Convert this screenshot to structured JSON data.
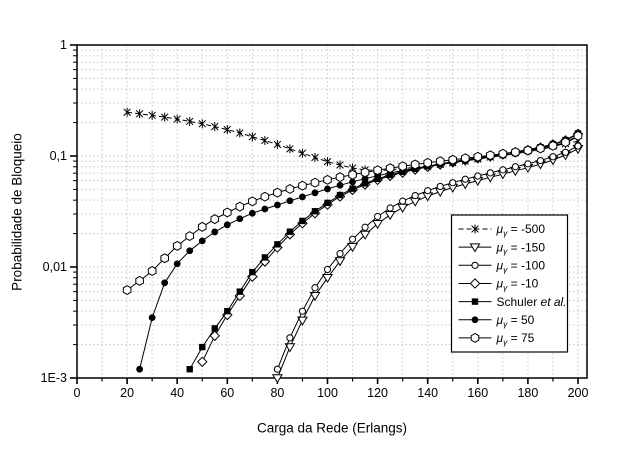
{
  "page": {
    "background": "#ffffff"
  },
  "chart_data": {
    "type": "line",
    "title": "",
    "xlabel": "Carga da Rede (Erlangs)",
    "ylabel": "Probabilidade de Bloqueio",
    "x_axis": {
      "min": 0,
      "max": 200,
      "major_tick_step": 20,
      "minor_tick_step": 10,
      "tick_labels": [
        "0",
        "20",
        "40",
        "60",
        "80",
        "100",
        "120",
        "140",
        "160",
        "180",
        "200"
      ]
    },
    "y_axis": {
      "scale": "log",
      "min": 0.001,
      "max": 1,
      "ticks": [
        {
          "value": 1,
          "label": "1"
        },
        {
          "value": 0.1,
          "label": "0,1"
        },
        {
          "value": 0.01,
          "label": "0,01"
        },
        {
          "value": 0.001,
          "label": "1E-3"
        }
      ]
    },
    "grid": {
      "vertical_step": 10,
      "horizontal": "log-minor-and-decades",
      "color": "#c8c8c8"
    },
    "line_color": "#000000",
    "x_step": 5,
    "legend": {
      "background": "#ffffff",
      "border": "#000000",
      "position": "inside-right"
    },
    "series": [
      {
        "name": "mu_gamma_-500",
        "legend_pre": "μ",
        "legend_sub": "γ",
        "legend_post": "= -500",
        "marker": "star",
        "line_style": "dashed",
        "x_start": 20,
        "values": [
          0.248,
          0.24,
          0.232,
          0.224,
          0.215,
          0.205,
          0.195,
          0.184,
          0.173,
          0.161,
          0.149,
          0.138,
          0.127,
          0.116,
          0.106,
          0.097,
          0.089,
          0.083,
          0.078,
          0.075,
          0.074,
          0.075,
          0.077,
          0.079,
          0.081,
          0.084,
          0.087,
          0.09,
          0.094,
          0.098,
          0.102,
          0.107,
          0.112,
          0.117,
          0.123,
          0.129,
          0.136
        ]
      },
      {
        "name": "mu_gamma_-150",
        "legend_pre": "μ",
        "legend_sub": "γ",
        "legend_post": "= -150",
        "marker": "triangle-down",
        "line_style": "solid",
        "x_start": 80,
        "values": [
          0.001,
          0.0019,
          0.0033,
          0.0055,
          0.008,
          0.0113,
          0.0152,
          0.0196,
          0.0245,
          0.0295,
          0.0343,
          0.039,
          0.0435,
          0.0478,
          0.052,
          0.056,
          0.06,
          0.0643,
          0.0687,
          0.0735,
          0.0785,
          0.0845,
          0.092,
          0.102,
          0.116
        ]
      },
      {
        "name": "mu_gamma_-100",
        "legend_pre": "μ",
        "legend_sub": "γ",
        "legend_post": "= -100",
        "marker": "circle",
        "line_style": "solid",
        "x_start": 80,
        "values": [
          0.0012,
          0.0023,
          0.004,
          0.0065,
          0.0095,
          0.0132,
          0.0178,
          0.0228,
          0.0285,
          0.034,
          0.0392,
          0.044,
          0.0487,
          0.0532,
          0.0575,
          0.0618,
          0.066,
          0.0705,
          0.075,
          0.08,
          0.085,
          0.091,
          0.0985,
          0.108,
          0.123
        ]
      },
      {
        "name": "mu_gamma_-10",
        "legend_pre": "μ",
        "legend_sub": "γ",
        "legend_post": "= -10",
        "marker": "diamond",
        "line_style": "solid",
        "x_start": 50,
        "values": [
          0.0014,
          0.0024,
          0.0037,
          0.0055,
          0.0082,
          0.0112,
          0.015,
          0.0197,
          0.0248,
          0.0305,
          0.0365,
          0.0432,
          0.0495,
          0.0553,
          0.061,
          0.0662,
          0.071,
          0.0755,
          0.0797,
          0.0838,
          0.0878,
          0.0917,
          0.0956,
          0.0996,
          0.1038,
          0.1082,
          0.113,
          0.119,
          0.127,
          0.138,
          0.158
        ]
      },
      {
        "name": "schuler",
        "legend_pre": "Schuler ",
        "legend_italic": "et al.",
        "marker": "square-filled",
        "line_style": "solid",
        "x_start": 45,
        "values": [
          0.0012,
          0.0019,
          0.0028,
          0.004,
          0.006,
          0.009,
          0.0122,
          0.016,
          0.0208,
          0.026,
          0.0318,
          0.0378,
          0.0445,
          0.0508,
          0.0567,
          0.0623,
          0.0675,
          0.0722,
          0.0766,
          0.0808,
          0.0849,
          0.0889,
          0.0928,
          0.0967,
          0.1007,
          0.1049,
          0.1093,
          0.1141,
          0.12,
          0.128,
          0.139,
          0.16
        ]
      },
      {
        "name": "mu_gamma_50",
        "legend_pre": "μ",
        "legend_sub": "γ",
        "legend_post": "= 50",
        "marker": "circle-filled",
        "line_style": "solid",
        "x_start": 25,
        "values": [
          0.0012,
          0.0035,
          0.0072,
          0.0107,
          0.014,
          0.0172,
          0.0207,
          0.024,
          0.0272,
          0.0305,
          0.0333,
          0.0362,
          0.0395,
          0.0428,
          0.0466,
          0.0505,
          0.0545,
          0.0585,
          0.0625,
          0.0665,
          0.0703,
          0.074,
          0.0775,
          0.081,
          0.0843,
          0.0876,
          0.0908,
          0.094,
          0.0975,
          0.101,
          0.1048,
          0.109,
          0.1145,
          0.1215,
          0.131,
          0.15
        ]
      },
      {
        "name": "mu_gamma_75",
        "legend_pre": "μ",
        "legend_sub": "γ",
        "legend_post": "= 75",
        "marker": "hexagon",
        "line_style": "solid",
        "x_start": 20,
        "values": [
          0.0062,
          0.0075,
          0.0092,
          0.012,
          0.0155,
          0.019,
          0.023,
          0.027,
          0.031,
          0.035,
          0.039,
          0.043,
          0.0468,
          0.0505,
          0.054,
          0.0575,
          0.061,
          0.0645,
          0.0678,
          0.0712,
          0.0745,
          0.0777,
          0.0808,
          0.0838,
          0.0868,
          0.0897,
          0.0926,
          0.0955,
          0.0984,
          0.1015,
          0.1048,
          0.1083,
          0.1122,
          0.117,
          0.1235,
          0.133,
          0.152
        ]
      }
    ]
  }
}
